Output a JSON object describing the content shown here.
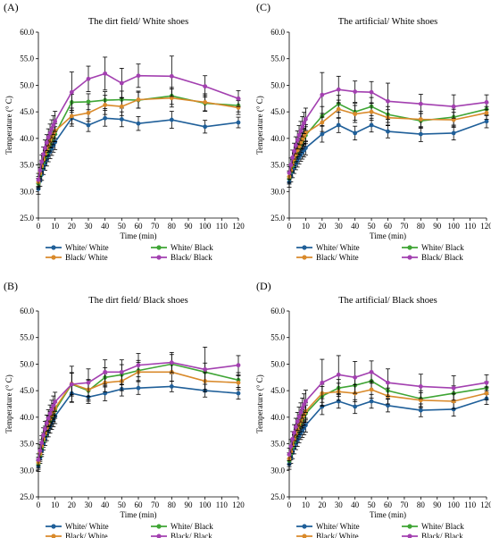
{
  "colors": {
    "White/ White": "#1f5f99",
    "White/ Black": "#3fa535",
    "Black/ White": "#d98a2b",
    "Black/ Black": "#a340b0"
  },
  "chart_data": [
    {
      "type": "line",
      "panel": "(A)",
      "title": "The dirt field/ White shoes",
      "xlabel": "Time (min)",
      "ylabel": "Temperature (° C)",
      "xlim": [
        0,
        120
      ],
      "ylim": [
        25.0,
        60.0
      ],
      "xticks": [
        "0",
        "10",
        "20",
        "30",
        "40",
        "50",
        "60",
        "70",
        "80",
        "90",
        "100",
        "110",
        "120"
      ],
      "yticks": [
        "25.0",
        "30.0",
        "35.0",
        "40.0",
        "45.0",
        "50.0",
        "55.0",
        "60.0"
      ],
      "legend": "bottom",
      "x": [
        0,
        1,
        2,
        3,
        4,
        5,
        6,
        7,
        8,
        9,
        10,
        20,
        30,
        40,
        50,
        60,
        80,
        100,
        120
      ],
      "series": [
        {
          "name": "White/ White",
          "values": [
            30.5,
            32.0,
            33.2,
            34.3,
            35.2,
            36.0,
            36.8,
            37.5,
            38.1,
            38.7,
            39.3,
            43.8,
            42.5,
            43.8,
            43.6,
            42.8,
            43.5,
            42.2,
            43.0
          ],
          "err": [
            1.0,
            1.0,
            1.1,
            1.1,
            1.2,
            1.2,
            1.2,
            1.3,
            1.3,
            1.3,
            1.4,
            1.5,
            1.2,
            1.5,
            1.4,
            1.3,
            1.6,
            1.2,
            1.0
          ]
        },
        {
          "name": "White/ Black",
          "values": [
            31.5,
            33.0,
            34.4,
            35.5,
            36.5,
            37.3,
            38.1,
            38.9,
            39.6,
            40.2,
            40.8,
            46.8,
            46.9,
            47.2,
            47.3,
            47.2,
            48.0,
            46.6,
            46.2
          ],
          "err": [
            1.0,
            1.0,
            1.1,
            1.2,
            1.2,
            1.2,
            1.3,
            1.3,
            1.3,
            1.4,
            1.4,
            1.5,
            1.5,
            1.6,
            1.6,
            1.5,
            1.6,
            1.5,
            1.2
          ]
        },
        {
          "name": "Black/ White",
          "values": [
            31.8,
            33.4,
            34.8,
            36.0,
            37.0,
            37.9,
            38.7,
            39.5,
            40.2,
            40.8,
            41.4,
            44.2,
            44.8,
            46.3,
            46.0,
            47.3,
            47.6,
            46.8,
            45.8
          ],
          "err": [
            1.0,
            1.1,
            1.1,
            1.2,
            1.2,
            1.3,
            1.3,
            1.3,
            1.4,
            1.4,
            1.4,
            1.5,
            1.6,
            1.8,
            1.7,
            1.6,
            1.7,
            1.6,
            1.3
          ]
        },
        {
          "name": "Black/ Black",
          "values": [
            32.2,
            34.0,
            35.6,
            37.0,
            38.2,
            39.2,
            40.2,
            41.0,
            41.8,
            42.5,
            43.2,
            48.7,
            51.2,
            52.2,
            50.4,
            51.8,
            51.7,
            49.8,
            47.5
          ],
          "err": [
            1.2,
            1.2,
            1.3,
            1.4,
            1.5,
            1.5,
            1.6,
            1.7,
            1.7,
            1.8,
            1.9,
            3.8,
            2.4,
            3.1,
            2.8,
            2.2,
            3.8,
            2.0,
            1.5
          ]
        }
      ]
    },
    {
      "type": "line",
      "panel": "(C)",
      "title": "The artificial/ White shoes",
      "xlabel": "Time (min)",
      "ylabel": "Temperature (° C)",
      "xlim": [
        0,
        120
      ],
      "ylim": [
        25.0,
        60.0
      ],
      "xticks": [
        "0",
        "10",
        "20",
        "30",
        "40",
        "50",
        "60",
        "70",
        "80",
        "90",
        "100",
        "110",
        "120"
      ],
      "yticks": [
        "25.0",
        "30.0",
        "35.0",
        "40.0",
        "45.0",
        "50.0",
        "55.0",
        "60.0"
      ],
      "legend": "bottom",
      "x": [
        0,
        1,
        2,
        3,
        4,
        5,
        6,
        7,
        8,
        9,
        10,
        20,
        30,
        40,
        50,
        60,
        80,
        100,
        120
      ],
      "series": [
        {
          "name": "White/ White",
          "values": [
            31.8,
            32.8,
            33.7,
            34.5,
            35.2,
            35.8,
            36.4,
            36.9,
            37.4,
            37.8,
            38.2,
            40.8,
            42.5,
            41.0,
            42.5,
            41.3,
            40.8,
            41.0,
            43.2
          ],
          "err": [
            1.0,
            1.0,
            1.1,
            1.1,
            1.1,
            1.2,
            1.2,
            1.2,
            1.3,
            1.3,
            1.3,
            1.5,
            1.4,
            1.3,
            1.3,
            1.2,
            1.4,
            1.3,
            1.2
          ]
        },
        {
          "name": "White/ Black",
          "values": [
            32.5,
            33.7,
            34.8,
            35.8,
            36.7,
            37.5,
            38.2,
            38.9,
            39.5,
            40.1,
            40.6,
            44.2,
            46.5,
            45.0,
            46.0,
            44.5,
            43.3,
            44.0,
            45.5
          ],
          "err": [
            1.1,
            1.1,
            1.2,
            1.3,
            1.3,
            1.4,
            1.4,
            1.5,
            1.5,
            1.6,
            1.6,
            1.8,
            1.6,
            1.6,
            1.7,
            1.5,
            1.4,
            1.5,
            1.2
          ]
        },
        {
          "name": "Black/ White",
          "values": [
            32.8,
            34.0,
            35.1,
            36.1,
            37.0,
            37.8,
            38.5,
            39.2,
            39.8,
            40.4,
            41.0,
            43.0,
            45.5,
            44.6,
            45.0,
            43.9,
            43.6,
            43.5,
            44.8
          ],
          "err": [
            1.1,
            1.1,
            1.2,
            1.2,
            1.3,
            1.3,
            1.4,
            1.4,
            1.5,
            1.5,
            1.6,
            1.7,
            1.7,
            1.6,
            1.6,
            1.5,
            1.5,
            1.4,
            1.2
          ]
        },
        {
          "name": "Black/ Black",
          "values": [
            33.5,
            35.0,
            36.4,
            37.6,
            38.7,
            39.7,
            40.6,
            41.4,
            42.2,
            42.9,
            43.6,
            48.2,
            49.2,
            48.8,
            48.7,
            47.0,
            46.5,
            46.0,
            46.8
          ],
          "err": [
            1.2,
            1.3,
            1.4,
            1.5,
            1.6,
            1.7,
            1.8,
            1.8,
            1.9,
            2.0,
            2.1,
            4.2,
            2.5,
            2.0,
            2.0,
            3.4,
            1.8,
            2.2,
            1.4
          ]
        }
      ]
    },
    {
      "type": "line",
      "panel": "(B)",
      "title": "The dirt field/ Black shoes",
      "xlabel": "Time (min)",
      "ylabel": "Temperature (° C)",
      "xlim": [
        0,
        120
      ],
      "ylim": [
        25.0,
        60.0
      ],
      "xticks": [
        "0",
        "10",
        "20",
        "30",
        "40",
        "50",
        "60",
        "70",
        "80",
        "90",
        "100",
        "110",
        "120"
      ],
      "yticks": [
        "25.0",
        "30.0",
        "35.0",
        "40.0",
        "45.0",
        "50.0",
        "55.0",
        "60.0"
      ],
      "legend": "bottom",
      "x": [
        0,
        1,
        2,
        3,
        4,
        5,
        6,
        7,
        8,
        9,
        10,
        20,
        30,
        40,
        50,
        60,
        80,
        100,
        120
      ],
      "series": [
        {
          "name": "White/ White",
          "values": [
            30.8,
            32.3,
            33.7,
            34.9,
            35.9,
            36.8,
            37.6,
            38.3,
            39.0,
            39.6,
            40.2,
            44.5,
            43.8,
            44.5,
            45.3,
            45.5,
            45.8,
            45.0,
            44.5
          ],
          "err": [
            1.0,
            1.0,
            1.1,
            1.1,
            1.2,
            1.2,
            1.3,
            1.3,
            1.3,
            1.4,
            1.4,
            1.6,
            1.2,
            1.4,
            1.3,
            1.2,
            1.0,
            1.2,
            1.1
          ]
        },
        {
          "name": "White/ Black",
          "values": [
            31.2,
            32.8,
            34.2,
            35.5,
            36.6,
            37.6,
            38.5,
            39.3,
            40.0,
            40.7,
            41.3,
            46.2,
            45.0,
            47.5,
            48.0,
            48.8,
            50.0,
            48.5,
            47.0
          ],
          "err": [
            1.0,
            1.1,
            1.2,
            1.2,
            1.3,
            1.3,
            1.4,
            1.4,
            1.5,
            1.5,
            1.5,
            2.2,
            2.0,
            1.8,
            1.9,
            1.9,
            1.8,
            1.7,
            1.4
          ]
        },
        {
          "name": "Black/ White",
          "values": [
            31.5,
            33.1,
            34.6,
            35.9,
            37.0,
            38.0,
            38.9,
            39.7,
            40.4,
            41.1,
            41.7,
            46.3,
            45.2,
            46.5,
            46.8,
            48.5,
            48.5,
            46.8,
            46.5
          ],
          "err": [
            1.0,
            1.1,
            1.2,
            1.2,
            1.3,
            1.3,
            1.4,
            1.4,
            1.5,
            1.5,
            1.5,
            2.0,
            1.9,
            1.7,
            1.8,
            1.8,
            1.7,
            1.6,
            1.3
          ]
        },
        {
          "name": "Black/ Black",
          "values": [
            32.0,
            33.7,
            35.2,
            36.6,
            37.8,
            38.9,
            39.8,
            40.7,
            41.5,
            42.2,
            42.9,
            46.2,
            46.5,
            48.5,
            48.5,
            49.8,
            50.3,
            49.0,
            49.8
          ],
          "err": [
            1.1,
            1.2,
            1.3,
            1.4,
            1.4,
            1.5,
            1.6,
            1.6,
            1.7,
            1.8,
            1.8,
            3.4,
            2.6,
            2.3,
            2.3,
            2.2,
            1.9,
            4.2,
            1.8
          ]
        }
      ]
    },
    {
      "type": "line",
      "panel": "(D)",
      "title": "The artificial/ Black shoes",
      "xlabel": "Time (min)",
      "ylabel": "Temperature (° C)",
      "xlim": [
        0,
        120
      ],
      "ylim": [
        25.0,
        60.0
      ],
      "xticks": [
        "0",
        "10",
        "20",
        "30",
        "40",
        "50",
        "60",
        "70",
        "80",
        "90",
        "100",
        "110",
        "120"
      ],
      "yticks": [
        "25.0",
        "30.0",
        "35.0",
        "40.0",
        "45.0",
        "50.0",
        "55.0",
        "60.0"
      ],
      "legend": "bottom",
      "x": [
        0,
        1,
        2,
        3,
        4,
        5,
        6,
        7,
        8,
        9,
        10,
        20,
        30,
        40,
        50,
        60,
        80,
        100,
        120
      ],
      "series": [
        {
          "name": "White/ White",
          "values": [
            31.2,
            32.3,
            33.3,
            34.2,
            35.0,
            35.7,
            36.4,
            37.0,
            37.5,
            38.0,
            38.5,
            42.0,
            43.0,
            42.0,
            43.0,
            42.2,
            41.3,
            41.5,
            43.5
          ],
          "err": [
            1.0,
            1.0,
            1.1,
            1.1,
            1.1,
            1.2,
            1.2,
            1.2,
            1.3,
            1.3,
            1.3,
            1.5,
            1.3,
            1.3,
            1.3,
            1.2,
            1.2,
            1.3,
            1.1
          ]
        },
        {
          "name": "White/ Black",
          "values": [
            31.8,
            33.1,
            34.3,
            35.4,
            36.4,
            37.3,
            38.1,
            38.8,
            39.5,
            40.1,
            40.7,
            44.0,
            45.5,
            46.0,
            46.8,
            45.0,
            43.5,
            44.5,
            45.5
          ],
          "err": [
            1.1,
            1.1,
            1.2,
            1.3,
            1.3,
            1.4,
            1.4,
            1.5,
            1.5,
            1.6,
            1.6,
            1.8,
            1.6,
            1.6,
            1.7,
            1.5,
            1.5,
            1.4,
            1.2
          ]
        },
        {
          "name": "Black/ White",
          "values": [
            32.2,
            33.5,
            34.7,
            35.8,
            36.8,
            37.7,
            38.5,
            39.2,
            39.9,
            40.5,
            41.1,
            44.5,
            44.8,
            44.5,
            45.2,
            44.0,
            43.2,
            43.0,
            44.5
          ],
          "err": [
            1.1,
            1.1,
            1.2,
            1.3,
            1.3,
            1.4,
            1.4,
            1.4,
            1.5,
            1.5,
            1.6,
            1.7,
            1.6,
            1.6,
            1.6,
            1.5,
            1.4,
            1.4,
            1.2
          ]
        },
        {
          "name": "Black/ Black",
          "values": [
            33.0,
            34.5,
            35.9,
            37.1,
            38.2,
            39.2,
            40.1,
            40.9,
            41.7,
            42.4,
            43.0,
            46.5,
            48.0,
            47.5,
            48.5,
            46.5,
            45.8,
            45.5,
            46.5
          ],
          "err": [
            1.2,
            1.3,
            1.4,
            1.5,
            1.6,
            1.7,
            1.8,
            1.8,
            1.9,
            2.0,
            2.1,
            4.4,
            3.6,
            3.0,
            2.1,
            2.6,
            2.3,
            2.3,
            1.5
          ]
        }
      ]
    }
  ]
}
